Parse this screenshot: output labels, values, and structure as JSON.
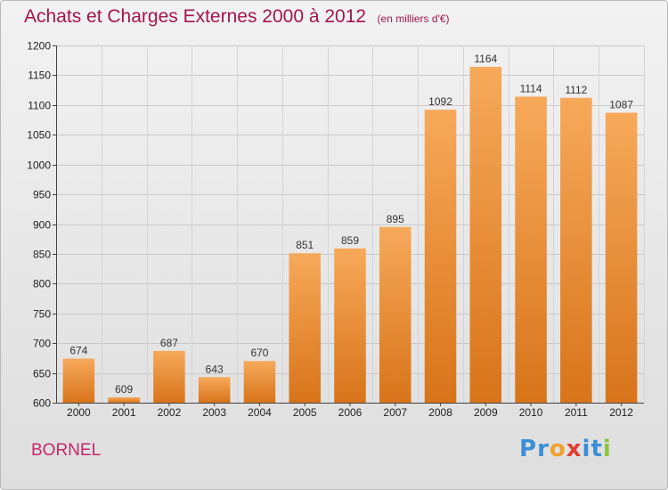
{
  "title": "Achats et Charges Externes 2000 à 2012",
  "unit_label": "(en milliers d'€)",
  "commune": "BORNEL",
  "logo": {
    "text": "Proxiti",
    "letters": [
      "P",
      "r",
      "o",
      "x",
      "i",
      "t",
      "i"
    ],
    "colors": [
      "#3b8fd6",
      "#3b8fd6",
      "#f0a12b",
      "#e23d2f",
      "#3b8fd6",
      "#3b8fd6",
      "#8cc63f"
    ]
  },
  "colors": {
    "title": "#a5154e",
    "bar_top": "#f7a95a",
    "bar_bottom": "#d8741a",
    "grid": "#c8c8c8"
  },
  "chart_data": {
    "type": "bar",
    "title": "Achats et Charges Externes 2000 à 2012",
    "categories": [
      "2000",
      "2001",
      "2002",
      "2003",
      "2004",
      "2005",
      "2006",
      "2007",
      "2008",
      "2009",
      "2010",
      "2011",
      "2012"
    ],
    "values": [
      674,
      609,
      687,
      643,
      670,
      851,
      859,
      895,
      1092,
      1164,
      1114,
      1112,
      1087
    ],
    "ylim": [
      600,
      1200
    ],
    "yticks": [
      600,
      650,
      700,
      750,
      800,
      850,
      900,
      950,
      1000,
      1050,
      1100,
      1150,
      1200
    ],
    "grid": true,
    "data_labels": true
  }
}
